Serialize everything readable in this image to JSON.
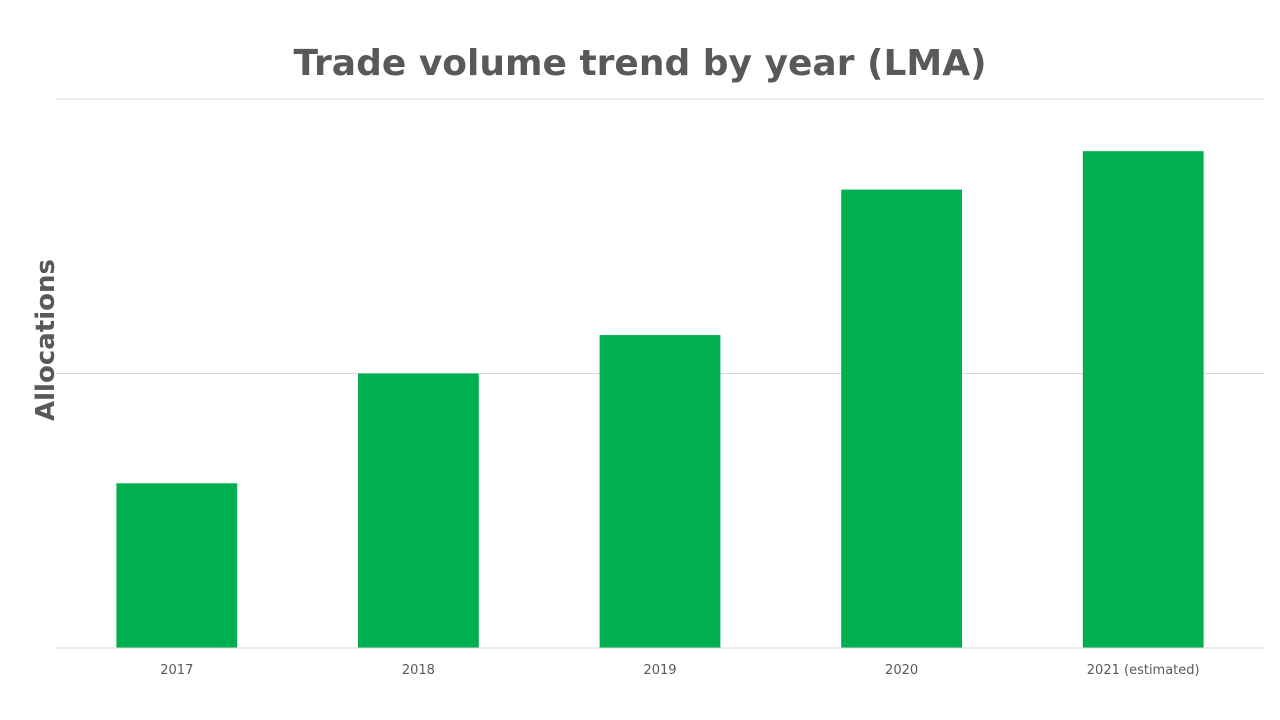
{
  "chart_data": {
    "type": "bar",
    "title": "Trade volume trend by year (LMA)",
    "xlabel": "",
    "ylabel": "Allocations",
    "categories": [
      "2017",
      "2018",
      "2019",
      "2020",
      "2021 (estimated)"
    ],
    "values": [
      0.6,
      1.0,
      1.14,
      1.67,
      1.81
    ],
    "ylim": [
      0,
      2
    ],
    "y_gridlines": true,
    "y_tick_labels_shown": false,
    "legend": "none",
    "colors": {
      "bar": "#00B050",
      "text": "#595959",
      "grid": "#D9D9D9"
    }
  }
}
